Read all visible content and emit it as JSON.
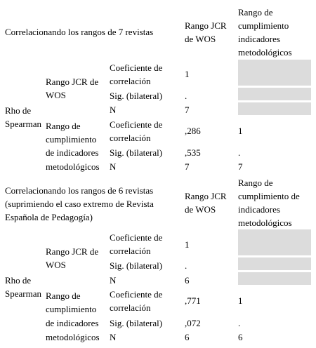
{
  "sections": [
    {
      "title": [
        "Correlacionando los rangos de 7 revistas"
      ],
      "col_headers": {
        "jcr": [
          "Rango JCR",
          "de WOS"
        ],
        "cumpl": [
          "Rango de",
          "cumplimiento",
          "indicadores",
          "metodológicos"
        ]
      },
      "method": [
        "Rho de",
        "Spearman"
      ],
      "var1": [
        "Rango JCR de",
        "WOS"
      ],
      "var2": [
        "Rango de",
        "cumplimiento",
        "de indicadores",
        "metodológicos"
      ],
      "stats": {
        "coef": [
          "Coeficiente de",
          "correlación"
        ],
        "sig": "Sig. (bilateral)",
        "n": "N"
      },
      "values": {
        "v1_coef": "1",
        "v1_sig": ".",
        "v1_n": "7",
        "v2_coef_jcr": ",286",
        "v2_coef_cumpl": "1",
        "v2_sig_jcr": ",535",
        "v2_sig_cumpl": ".",
        "v2_n_jcr": "7",
        "v2_n_cumpl": "7"
      }
    },
    {
      "title": [
        "Correlacionando los rangos de 6 revistas",
        "(suprimiendo el caso extremo de Revista",
        "Española de Pedagogía)"
      ],
      "col_headers": {
        "jcr": [
          "Rango JCR",
          "de WOS"
        ],
        "cumpl": [
          "Rango de",
          "cumplimiento de",
          "indicadores",
          "metodológicos"
        ]
      },
      "method": [
        "Rho de",
        "Spearman"
      ],
      "var1": [
        "Rango JCR de",
        "WOS"
      ],
      "var2": [
        "Rango de",
        "cumplimiento",
        "de indicadores",
        "metodológicos"
      ],
      "stats": {
        "coef": [
          "Coeficiente de",
          "correlación"
        ],
        "sig": "Sig. (bilateral)",
        "n": "N"
      },
      "values": {
        "v1_coef": "1",
        "v1_sig": ".",
        "v1_n": "6",
        "v2_coef_jcr": ",771",
        "v2_coef_cumpl": "1",
        "v2_sig_jcr": ",072",
        "v2_sig_cumpl": ".",
        "v2_n_jcr": "6",
        "v2_n_cumpl": "6"
      }
    }
  ],
  "colors": {
    "empty_cell": "#dcdcdc"
  }
}
